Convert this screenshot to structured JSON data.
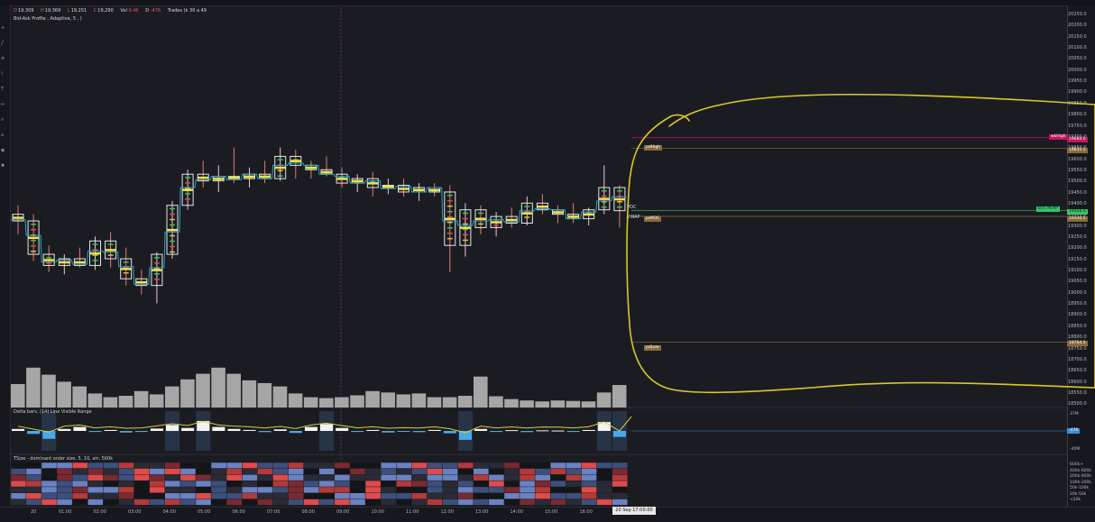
{
  "legend": {
    "open_label": "O",
    "open_value": "19,309",
    "high_label": "H",
    "high_value": "19,369",
    "low_label": "L",
    "low_value": "19,251",
    "close_label": "C",
    "close_value": "19,290",
    "vol_label": "Vol",
    "vol_value": "9.4K",
    "delta_label": "D",
    "delta_value": "-476",
    "trades_text": "Trades (k 30 a 49",
    "indicator_text": "Bid-Ask Profile , Adaptive, 5 , )"
  },
  "price_axis": [
    "20250.0",
    "20200.0",
    "20150.0",
    "20100.0",
    "20050.0",
    "20000.0",
    "19950.0",
    "19900.0",
    "19850.0",
    "19800.0",
    "19750.0",
    "19700.0",
    "19650.0",
    "19600.0",
    "19550.0",
    "19500.0",
    "19450.0",
    "19400.0",
    "19350.0",
    "19300.0",
    "19250.0",
    "19200.0",
    "19150.0",
    "19100.0",
    "19050.0",
    "19000.0",
    "18950.0",
    "18900.0",
    "18850.0",
    "18800.0",
    "18750.0",
    "18700.0",
    "18650.0",
    "18600.0",
    "18550.0",
    "18500.0"
  ],
  "levels": {
    "wkhigh": {
      "label": "wkHigh",
      "price": "19684.0",
      "color": "#c2185b"
    },
    "pdhigh": {
      "label": "pdHigh",
      "price": "19635.5",
      "color": "#8a6a3a"
    },
    "pdpoc": {
      "label": "pdPOC",
      "price": "19330.5",
      "color": "#8a6a3a"
    },
    "pdlow": {
      "label": "pdLow",
      "price": "18764.5",
      "color": "#8a6a3a"
    },
    "symbol": {
      "label": "BTC-PERP",
      "price": "19356.0",
      "color": "#35c46a"
    },
    "poc_marker": "POC",
    "vwap_marker": "VWAP"
  },
  "delta_panel": {
    "title": "Delta bars, (14) Line Visible Range",
    "top_label": "37M",
    "mid_label": "-476",
    "bottom_label": "-40M"
  },
  "tsize_panel": {
    "title": "TSize - dominant order size, 5, 10, atr, 500k",
    "scale_labels": [
      "600k+",
      "400k-600k",
      "200k-400k",
      "100k-200k",
      "50k-100k",
      "20k-50k",
      "<20k"
    ]
  },
  "time_axis": [
    "20",
    "01:00",
    "02:00",
    "03:00",
    "04:00",
    "05:00",
    "06:00",
    "07:00",
    "08:00",
    "09:00",
    "10:00",
    "11:00",
    "12:00",
    "13:00",
    "14:00",
    "15:00",
    "16:00"
  ],
  "time_cursor": "20 Sep 17:00:00",
  "toolbar_icons": [
    "crosshair-icon",
    "trend-line-icon",
    "fib-icon",
    "pattern-icon",
    "text-icon",
    "ruler-icon",
    "magnet-icon",
    "lock-icon",
    "eye-icon",
    "trash-icon"
  ],
  "chart_data": {
    "type": "candlestick",
    "x_labels": [
      "20",
      "01:00",
      "02:00",
      "03:00",
      "04:00",
      "05:00",
      "06:00",
      "07:00",
      "08:00",
      "09:00",
      "10:00",
      "11:00",
      "12:00",
      "13:00",
      "14:00",
      "15:00",
      "16:00"
    ],
    "candles": [
      {
        "o": 19340,
        "h": 19380,
        "l": 19250,
        "c": 19310
      },
      {
        "o": 19310,
        "h": 19340,
        "l": 19130,
        "c": 19160
      },
      {
        "o": 19160,
        "h": 19200,
        "l": 19080,
        "c": 19110
      },
      {
        "o": 19110,
        "h": 19160,
        "l": 19070,
        "c": 19140
      },
      {
        "o": 19140,
        "h": 19190,
        "l": 19100,
        "c": 19110
      },
      {
        "o": 19110,
        "h": 19240,
        "l": 19090,
        "c": 19220
      },
      {
        "o": 19220,
        "h": 19260,
        "l": 19100,
        "c": 19140
      },
      {
        "o": 19140,
        "h": 19190,
        "l": 19020,
        "c": 19050
      },
      {
        "o": 19050,
        "h": 19090,
        "l": 18980,
        "c": 19020
      },
      {
        "o": 19020,
        "h": 19170,
        "l": 18940,
        "c": 19160
      },
      {
        "o": 19160,
        "h": 19400,
        "l": 19140,
        "c": 19380
      },
      {
        "o": 19380,
        "h": 19540,
        "l": 19360,
        "c": 19520
      },
      {
        "o": 19520,
        "h": 19580,
        "l": 19460,
        "c": 19490
      },
      {
        "o": 19490,
        "h": 19560,
        "l": 19440,
        "c": 19510
      },
      {
        "o": 19510,
        "h": 19640,
        "l": 19480,
        "c": 19500
      },
      {
        "o": 19500,
        "h": 19550,
        "l": 19460,
        "c": 19520
      },
      {
        "o": 19520,
        "h": 19580,
        "l": 19480,
        "c": 19500
      },
      {
        "o": 19500,
        "h": 19640,
        "l": 19490,
        "c": 19600
      },
      {
        "o": 19600,
        "h": 19630,
        "l": 19500,
        "c": 19560
      },
      {
        "o": 19560,
        "h": 19580,
        "l": 19500,
        "c": 19540
      },
      {
        "o": 19540,
        "h": 19600,
        "l": 19510,
        "c": 19520
      },
      {
        "o": 19520,
        "h": 19550,
        "l": 19460,
        "c": 19480
      },
      {
        "o": 19480,
        "h": 19520,
        "l": 19440,
        "c": 19500
      },
      {
        "o": 19500,
        "h": 19530,
        "l": 19420,
        "c": 19460
      },
      {
        "o": 19460,
        "h": 19500,
        "l": 19430,
        "c": 19470
      },
      {
        "o": 19470,
        "h": 19500,
        "l": 19420,
        "c": 19440
      },
      {
        "o": 19440,
        "h": 19480,
        "l": 19400,
        "c": 19460
      },
      {
        "o": 19460,
        "h": 19480,
        "l": 19420,
        "c": 19440
      },
      {
        "o": 19440,
        "h": 19470,
        "l": 19080,
        "c": 19200
      },
      {
        "o": 19200,
        "h": 19390,
        "l": 19150,
        "c": 19360
      },
      {
        "o": 19360,
        "h": 19380,
        "l": 19250,
        "c": 19280
      },
      {
        "o": 19280,
        "h": 19350,
        "l": 19240,
        "c": 19330
      },
      {
        "o": 19330,
        "h": 19370,
        "l": 19280,
        "c": 19300
      },
      {
        "o": 19300,
        "h": 19420,
        "l": 19290,
        "c": 19390
      },
      {
        "o": 19390,
        "h": 19430,
        "l": 19340,
        "c": 19360
      },
      {
        "o": 19360,
        "h": 19380,
        "l": 19300,
        "c": 19340
      },
      {
        "o": 19340,
        "h": 19390,
        "l": 19300,
        "c": 19320
      },
      {
        "o": 19320,
        "h": 19370,
        "l": 19290,
        "c": 19360
      },
      {
        "o": 19360,
        "h": 19560,
        "l": 19340,
        "c": 19460
      },
      {
        "o": 19460,
        "h": 19470,
        "l": 19280,
        "c": 19356
      }
    ],
    "volumes": [
      0.5,
      0.85,
      0.7,
      0.55,
      0.45,
      0.3,
      0.22,
      0.25,
      0.35,
      0.28,
      0.45,
      0.6,
      0.72,
      0.85,
      0.72,
      0.58,
      0.52,
      0.45,
      0.3,
      0.22,
      0.2,
      0.22,
      0.26,
      0.35,
      0.32,
      0.28,
      0.3,
      0.22,
      0.22,
      0.25,
      0.66,
      0.24,
      0.18,
      0.15,
      0.13,
      0.15,
      0.14,
      0.13,
      0.32,
      0.48
    ],
    "deltas": [
      0.1,
      -0.15,
      -0.4,
      0.1,
      0.2,
      -0.05,
      0.05,
      -0.08,
      -0.05,
      0.12,
      0.3,
      0.15,
      0.5,
      0.2,
      0.1,
      0.05,
      -0.06,
      0.08,
      -0.1,
      0.2,
      0.35,
      0.15,
      -0.05,
      0.05,
      -0.08,
      -0.03,
      -0.06,
      0.05,
      -0.12,
      -0.45,
      0.1,
      -0.05,
      0.04,
      -0.06,
      0.03,
      0.02,
      -0.05,
      0.05,
      0.45,
      -0.3
    ],
    "ylim": [
      18500,
      20250
    ]
  }
}
